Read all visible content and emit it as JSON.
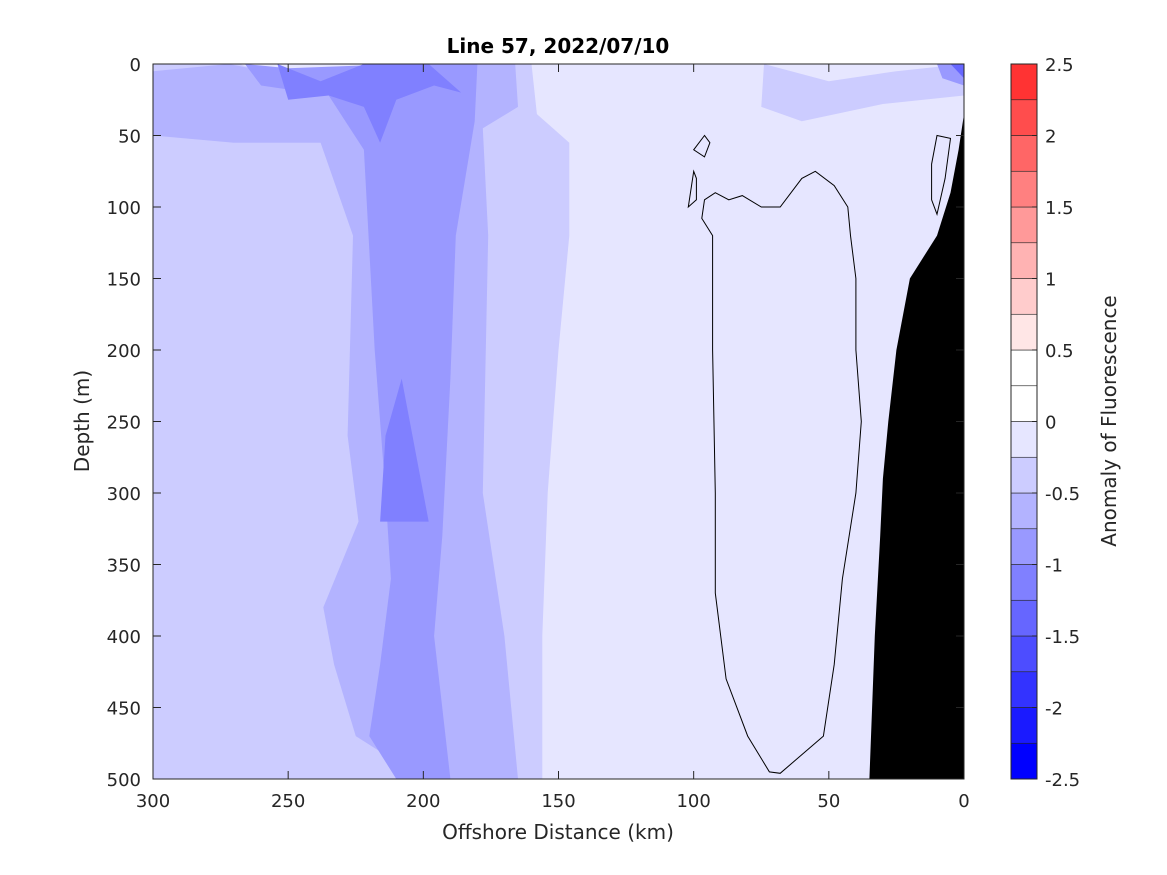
{
  "chart_data": {
    "type": "heatmap",
    "title": "Line 57, 2022/07/10",
    "xlabel": "Offshore Distance (km)",
    "ylabel": "Depth (m)",
    "xlim": [
      300,
      0
    ],
    "ylim": [
      0,
      500
    ],
    "x_reversed": true,
    "y_reversed": true,
    "x_ticks": [
      300,
      250,
      200,
      150,
      100,
      50,
      0
    ],
    "y_ticks": [
      0,
      50,
      100,
      150,
      200,
      250,
      300,
      350,
      400,
      450,
      500
    ],
    "grid": false,
    "colorbar": {
      "label": "Anomaly of Fluorescence",
      "range": [
        -2.5,
        2.5
      ],
      "levels": [
        -2.5,
        -2.25,
        -2.0,
        -1.75,
        -1.5,
        -1.25,
        -1.0,
        -0.75,
        -0.5,
        -0.25,
        0,
        0.25,
        0.5,
        0.75,
        1.0,
        1.25,
        1.5,
        1.75,
        2.0,
        2.25,
        2.5
      ],
      "colors": [
        "#0000ff",
        "#1a1aff",
        "#3333ff",
        "#4d4dff",
        "#6666ff",
        "#8080ff",
        "#9999ff",
        "#b3b3ff",
        "#ccccff",
        "#e6e6ff",
        "#ffffff",
        "#ffffff",
        "#ffe6e6",
        "#ffcccc",
        "#ffb3b3",
        "#ff9999",
        "#ff8080",
        "#ff6666",
        "#ff4d4d",
        "#ff3333",
        "#ff1a1a"
      ],
      "tick_values": [
        2.5,
        2,
        1.5,
        1,
        0.5,
        0,
        -0.5,
        -1,
        -1.5,
        -2,
        -2.5
      ],
      "tick_labels": [
        "2.5",
        "2",
        "1.5",
        "1",
        "0.5",
        "0",
        "-0.5",
        "-1",
        "-1.5",
        "-2",
        "-2.5"
      ]
    },
    "regions": [
      {
        "name": "band_offshore",
        "level": -0.5,
        "color": "#ccccff",
        "points": [
          [
            300,
            0
          ],
          [
            268,
            0
          ],
          [
            250,
            12
          ],
          [
            205,
            8
          ],
          [
            175,
            0
          ],
          [
            160,
            0
          ],
          [
            158,
            35
          ],
          [
            146,
            55
          ],
          [
            146,
            120
          ],
          [
            150,
            200
          ],
          [
            154,
            300
          ],
          [
            156,
            400
          ],
          [
            156,
            500
          ],
          [
            300,
            500
          ]
        ]
      },
      {
        "name": "band_shelf",
        "level": -0.5,
        "color": "#ccccff",
        "points": [
          [
            74,
            0
          ],
          [
            50,
            12
          ],
          [
            25,
            5
          ],
          [
            0,
            0
          ],
          [
            0,
            22
          ],
          [
            30,
            28
          ],
          [
            60,
            40
          ],
          [
            75,
            30
          ]
        ]
      },
      {
        "name": "core_offshore",
        "level": -0.75,
        "color": "#b3b3ff",
        "points": [
          [
            300,
            5
          ],
          [
            272,
            0
          ],
          [
            250,
            8
          ],
          [
            205,
            4
          ],
          [
            180,
            0
          ],
          [
            166,
            0
          ],
          [
            165,
            30
          ],
          [
            178,
            45
          ],
          [
            176,
            120
          ],
          [
            178,
            300
          ],
          [
            170,
            400
          ],
          [
            165,
            500
          ],
          [
            200,
            500
          ],
          [
            225,
            470
          ],
          [
            233,
            420
          ],
          [
            237,
            380
          ],
          [
            224,
            320
          ],
          [
            228,
            260
          ],
          [
            226,
            120
          ],
          [
            238,
            55
          ],
          [
            270,
            55
          ],
          [
            300,
            50
          ]
        ]
      },
      {
        "name": "core_offshore_2",
        "level": -1.0,
        "color": "#9999ff",
        "points": [
          [
            266,
            0
          ],
          [
            250,
            3
          ],
          [
            208,
            0
          ],
          [
            180,
            0
          ],
          [
            181,
            40
          ],
          [
            188,
            120
          ],
          [
            190,
            220
          ],
          [
            193,
            330
          ],
          [
            196,
            400
          ],
          [
            190,
            500
          ],
          [
            210,
            500
          ],
          [
            220,
            470
          ],
          [
            216,
            420
          ],
          [
            212,
            360
          ],
          [
            214,
            300
          ],
          [
            218,
            200
          ],
          [
            222,
            60
          ],
          [
            235,
            22
          ],
          [
            260,
            15
          ]
        ]
      },
      {
        "name": "core_offshore_3",
        "level": -1.25,
        "color": "#8080ff",
        "points": [
          [
            254,
            0
          ],
          [
            238,
            12
          ],
          [
            222,
            0
          ],
          [
            198,
            0
          ],
          [
            186,
            20
          ],
          [
            196,
            15
          ],
          [
            210,
            25
          ],
          [
            216,
            55
          ],
          [
            222,
            30
          ],
          [
            235,
            22
          ],
          [
            250,
            25
          ]
        ]
      },
      {
        "name": "core_deep",
        "level": -1.25,
        "color": "#8080ff",
        "points": [
          [
            208,
            220
          ],
          [
            200,
            300
          ],
          [
            198,
            320
          ],
          [
            216,
            320
          ],
          [
            214,
            260
          ]
        ]
      },
      {
        "name": "nearshore_patch",
        "level": -1.0,
        "color": "#9999ff",
        "points": [
          [
            10,
            0
          ],
          [
            0,
            0
          ],
          [
            0,
            15
          ],
          [
            8,
            10
          ]
        ]
      },
      {
        "name": "nearshore_patch_2",
        "level": -1.5,
        "color": "#6666ff",
        "points": [
          [
            5,
            0
          ],
          [
            0,
            0
          ],
          [
            0,
            10
          ]
        ]
      },
      {
        "name": "seafloor",
        "level": null,
        "color": "#000000",
        "points": [
          [
            0,
            35
          ],
          [
            2,
            60
          ],
          [
            5,
            90
          ],
          [
            10,
            120
          ],
          [
            20,
            150
          ],
          [
            25,
            200
          ],
          [
            28,
            250
          ],
          [
            30,
            290
          ],
          [
            31,
            330
          ],
          [
            33,
            400
          ],
          [
            34,
            450
          ],
          [
            35,
            500
          ],
          [
            0,
            500
          ]
        ]
      }
    ],
    "contours": [
      {
        "name": "zero_contour_main",
        "level": 0,
        "points": [
          [
            97,
            108
          ],
          [
            93,
            120
          ],
          [
            93,
            200
          ],
          [
            92,
            300
          ],
          [
            92,
            370
          ],
          [
            88,
            430
          ],
          [
            80,
            470
          ],
          [
            72,
            495
          ],
          [
            68,
            496
          ],
          [
            52,
            470
          ],
          [
            48,
            420
          ],
          [
            45,
            360
          ],
          [
            40,
            300
          ],
          [
            38,
            250
          ],
          [
            40,
            200
          ],
          [
            40,
            150
          ],
          [
            42,
            120
          ],
          [
            43,
            100
          ],
          [
            48,
            85
          ],
          [
            55,
            75
          ],
          [
            60,
            80
          ],
          [
            68,
            100
          ],
          [
            75,
            100
          ],
          [
            82,
            92
          ],
          [
            87,
            95
          ],
          [
            92,
            90
          ],
          [
            96,
            95
          ]
        ]
      },
      {
        "name": "zero_contour_small_1",
        "level": 0,
        "points": [
          [
            96,
            50
          ],
          [
            100,
            60
          ],
          [
            96,
            65
          ],
          [
            94,
            55
          ]
        ]
      },
      {
        "name": "zero_contour_small_2",
        "level": 0,
        "points": [
          [
            100,
            75
          ],
          [
            102,
            100
          ],
          [
            99,
            95
          ],
          [
            99,
            80
          ]
        ]
      },
      {
        "name": "zero_contour_nearshore",
        "level": 0,
        "points": [
          [
            10,
            50
          ],
          [
            12,
            70
          ],
          [
            12,
            95
          ],
          [
            10,
            105
          ],
          [
            7,
            80
          ],
          [
            5,
            52
          ]
        ]
      }
    ]
  }
}
